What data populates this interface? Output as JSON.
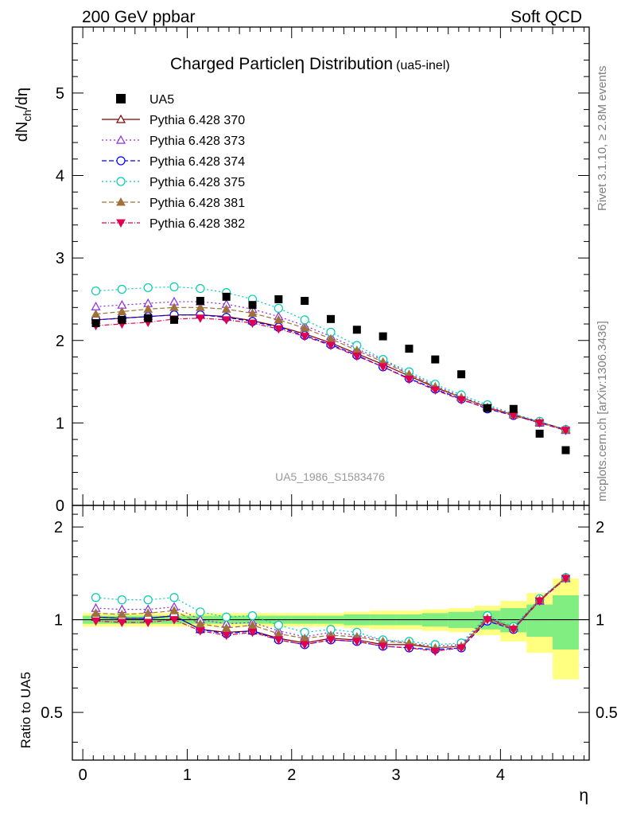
{
  "header": {
    "left": "200 GeV ppbar",
    "right": "Soft QCD"
  },
  "side_text": {
    "rivet": "Rivet 3.1.10, ≥ 2.8M events",
    "mcplots": "mcplots.cern.ch [arXiv:1306.3436]"
  },
  "chart_data": {
    "type": "line",
    "title_main": "Charged Particle",
    "title_eta": "η",
    "title_rest": " Distribution",
    "title_tag": "(ua5-inel)",
    "analysis_tag": "UA5_1986_S1583476",
    "ylabel": "dN",
    "ylabel_sub": "ch",
    "ylabel_rest": "/dη",
    "xlabel": "η",
    "ratio_ylabel": "Ratio to UA5",
    "xlim": [
      -0.1,
      4.85
    ],
    "ylim": [
      0,
      5.8
    ],
    "ratio_ylim": [
      0.35,
      2.35
    ],
    "x_ticks": [
      0,
      1,
      2,
      3,
      4
    ],
    "x_tick_labels": [
      "0",
      "1",
      "2",
      "3",
      "4"
    ],
    "y_ticks": [
      0,
      1,
      2,
      3,
      4,
      5
    ],
    "y_tick_labels": [
      "0",
      "1",
      "2",
      "3",
      "4",
      "5"
    ],
    "ratio_ticks": [
      0.5,
      1,
      2
    ],
    "ratio_tick_labels": [
      "0.5",
      "1",
      "2"
    ],
    "x": [
      0.125,
      0.375,
      0.625,
      0.875,
      1.125,
      1.375,
      1.625,
      1.875,
      2.125,
      2.375,
      2.625,
      2.875,
      3.125,
      3.375,
      3.625,
      3.875,
      4.125,
      4.375,
      4.625
    ],
    "data": {
      "name": "UA5",
      "values": [
        2.21,
        2.25,
        2.27,
        2.25,
        2.48,
        2.53,
        2.43,
        2.5,
        2.48,
        2.26,
        2.13,
        2.05,
        1.9,
        1.77,
        1.59,
        1.18,
        1.17,
        0.87,
        0.67
      ],
      "band_inner": [
        0.03,
        0.03,
        0.03,
        0.03,
        0.03,
        0.03,
        0.03,
        0.03,
        0.03,
        0.03,
        0.04,
        0.04,
        0.04,
        0.05,
        0.06,
        0.07,
        0.09,
        0.12,
        0.2
      ],
      "band_outer": [
        0.05,
        0.05,
        0.05,
        0.05,
        0.05,
        0.05,
        0.05,
        0.05,
        0.05,
        0.05,
        0.06,
        0.07,
        0.07,
        0.08,
        0.09,
        0.11,
        0.15,
        0.22,
        0.36
      ],
      "color": "#000000"
    },
    "series": [
      {
        "name": "Pythia 6.428 370",
        "color": "#800000",
        "marker": "triangle-open",
        "dash": "",
        "values": [
          2.25,
          2.27,
          2.29,
          2.31,
          2.31,
          2.29,
          2.24,
          2.17,
          2.08,
          1.97,
          1.84,
          1.71,
          1.57,
          1.43,
          1.31,
          1.19,
          1.1,
          1.01,
          0.92
        ]
      },
      {
        "name": "Pythia 6.428 373",
        "color": "#8b2be2",
        "marker": "triangle-open",
        "dash": "2,3",
        "values": [
          2.41,
          2.43,
          2.45,
          2.47,
          2.47,
          2.44,
          2.38,
          2.29,
          2.18,
          2.05,
          1.9,
          1.76,
          1.6,
          1.45,
          1.32,
          1.2,
          1.1,
          1.0,
          0.91
        ]
      },
      {
        "name": "Pythia 6.428 374",
        "color": "#0000ff",
        "marker": "circle-open",
        "dash": "6,3",
        "values": [
          2.25,
          2.27,
          2.29,
          2.31,
          2.31,
          2.28,
          2.23,
          2.16,
          2.06,
          1.95,
          1.82,
          1.68,
          1.54,
          1.41,
          1.29,
          1.17,
          1.09,
          1.01,
          0.92
        ]
      },
      {
        "name": "Pythia 6.428 375",
        "color": "#00cdb0",
        "marker": "circle-open",
        "dash": "2,3",
        "values": [
          2.6,
          2.62,
          2.64,
          2.65,
          2.63,
          2.58,
          2.5,
          2.39,
          2.25,
          2.1,
          1.94,
          1.77,
          1.62,
          1.47,
          1.34,
          1.22,
          1.11,
          1.02,
          0.92
        ]
      },
      {
        "name": "Pythia 6.428 381",
        "color": "#a0703a",
        "marker": "triangle-filled",
        "dash": "6,3",
        "values": [
          2.32,
          2.35,
          2.38,
          2.4,
          2.4,
          2.38,
          2.33,
          2.25,
          2.15,
          2.02,
          1.88,
          1.74,
          1.59,
          1.44,
          1.31,
          1.19,
          1.1,
          1.01,
          0.92
        ]
      },
      {
        "name": "Pythia 6.428 382",
        "color": "#e0004f",
        "marker": "triangle-down-filled",
        "dash": "6,2,1,2",
        "values": [
          2.18,
          2.2,
          2.22,
          2.26,
          2.27,
          2.25,
          2.21,
          2.14,
          2.05,
          1.94,
          1.81,
          1.68,
          1.53,
          1.4,
          1.28,
          1.18,
          1.09,
          1.0,
          0.91
        ]
      }
    ],
    "ratio_series": [
      [
        1.02,
        1.01,
        1.01,
        1.03,
        0.93,
        0.91,
        0.92,
        0.87,
        0.84,
        0.87,
        0.86,
        0.83,
        0.83,
        0.81,
        0.82,
        1.01,
        0.94,
        1.16,
        1.37
      ],
      [
        1.09,
        1.08,
        1.08,
        1.1,
        1.0,
        0.97,
        0.98,
        0.92,
        0.88,
        0.91,
        0.89,
        0.86,
        0.84,
        0.82,
        0.83,
        1.02,
        0.94,
        1.15,
        1.36
      ],
      [
        1.02,
        1.01,
        1.01,
        1.03,
        0.93,
        0.9,
        0.92,
        0.86,
        0.83,
        0.86,
        0.85,
        0.82,
        0.81,
        0.8,
        0.81,
        0.99,
        0.93,
        1.16,
        1.37
      ],
      [
        1.18,
        1.16,
        1.16,
        1.18,
        1.06,
        1.02,
        1.03,
        0.96,
        0.91,
        0.93,
        0.91,
        0.86,
        0.85,
        0.83,
        0.84,
        1.03,
        0.95,
        1.17,
        1.37
      ],
      [
        1.05,
        1.04,
        1.05,
        1.07,
        0.97,
        0.94,
        0.96,
        0.9,
        0.87,
        0.89,
        0.88,
        0.85,
        0.84,
        0.81,
        0.82,
        1.01,
        0.94,
        1.16,
        1.37
      ],
      [
        0.99,
        0.98,
        0.98,
        1.0,
        0.92,
        0.89,
        0.91,
        0.86,
        0.83,
        0.86,
        0.85,
        0.82,
        0.81,
        0.79,
        0.81,
        1.0,
        0.93,
        1.15,
        1.36
      ]
    ],
    "legend_position": "top-left",
    "grid": false
  }
}
